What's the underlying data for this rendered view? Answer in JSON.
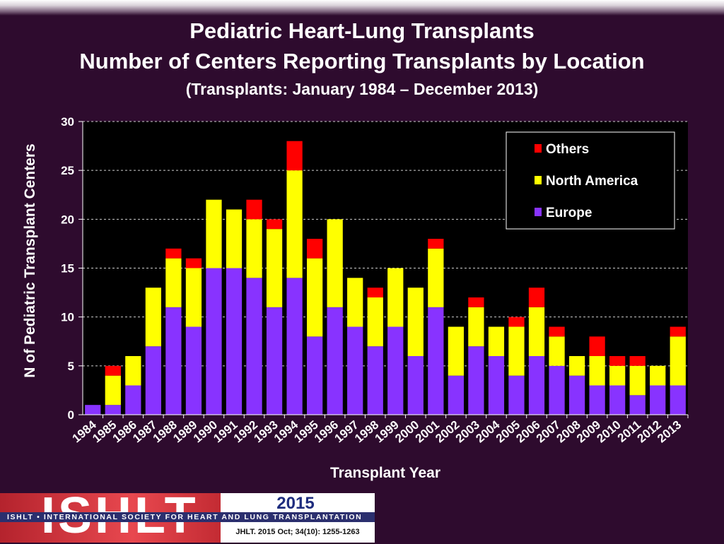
{
  "header": {
    "title": "Pediatric Heart-Lung Transplants",
    "subtitle": "Number of Centers Reporting Transplants by Location",
    "period": "(Transplants: January 1984 – December 2013)"
  },
  "chart_data": {
    "type": "bar",
    "stacked": true,
    "categories": [
      "1984",
      "1985",
      "1986",
      "1987",
      "1988",
      "1989",
      "1990",
      "1991",
      "1992",
      "1993",
      "1994",
      "1995",
      "1996",
      "1997",
      "1998",
      "1999",
      "2000",
      "2001",
      "2002",
      "2003",
      "2004",
      "2005",
      "2006",
      "2007",
      "2008",
      "2009",
      "2010",
      "2011",
      "2012",
      "2013"
    ],
    "series": [
      {
        "name": "Europe",
        "color": "#8833ff",
        "values": [
          1,
          1,
          3,
          7,
          11,
          9,
          15,
          15,
          14,
          11,
          14,
          8,
          11,
          9,
          7,
          9,
          6,
          11,
          4,
          7,
          6,
          4,
          6,
          5,
          4,
          3,
          3,
          2,
          3,
          3
        ]
      },
      {
        "name": "North America",
        "color": "#ffff00",
        "values": [
          0,
          3,
          3,
          6,
          5,
          6,
          7,
          6,
          6,
          8,
          11,
          8,
          9,
          5,
          5,
          6,
          7,
          6,
          5,
          4,
          3,
          5,
          5,
          3,
          2,
          3,
          2,
          3,
          2,
          5
        ]
      },
      {
        "name": "Others",
        "color": "#ff0000",
        "values": [
          0,
          1,
          0,
          0,
          1,
          1,
          0,
          0,
          2,
          1,
          3,
          2,
          0,
          0,
          1,
          0,
          0,
          1,
          0,
          1,
          0,
          1,
          2,
          1,
          0,
          2,
          1,
          1,
          0,
          1
        ]
      }
    ],
    "legend_order": [
      "Others",
      "North America",
      "Europe"
    ],
    "legend_position": "top-right",
    "ylim": [
      0,
      30
    ],
    "yticks": [
      0,
      5,
      10,
      15,
      20,
      25,
      30
    ],
    "xlabel": "Transplant Year",
    "ylabel": "N of Pediatric Transplant Centers",
    "grid": "horizontal dashed"
  },
  "footer": {
    "logo_text": "ISHLT",
    "society": "ISHLT • INTERNATIONAL SOCIETY FOR HEART AND LUNG TRANSPLANTATION",
    "year": "2015",
    "citation": "JHLT. 2015 Oct; 34(10): 1255-1263"
  }
}
